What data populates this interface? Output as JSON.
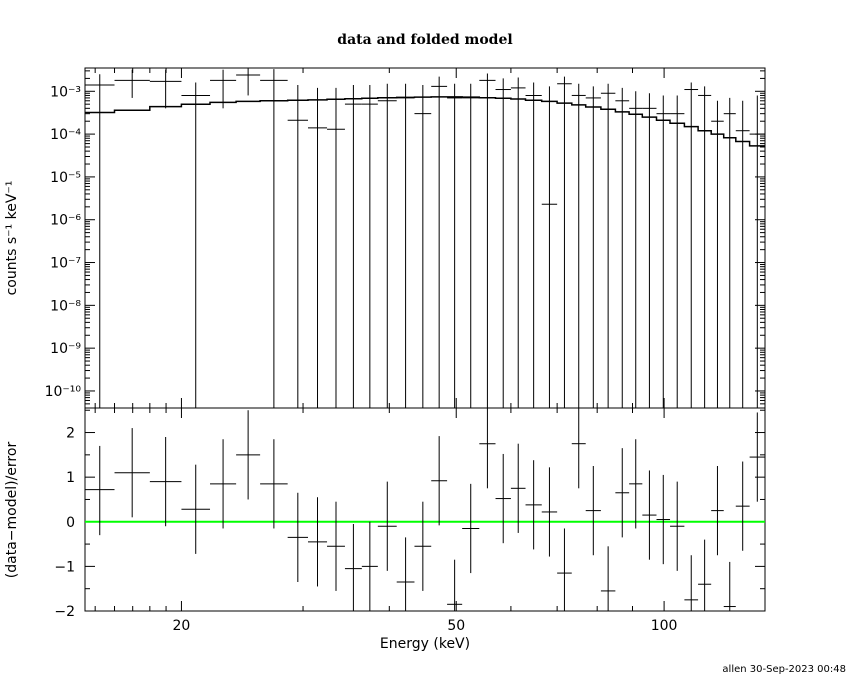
{
  "chart_data": [
    {
      "panel": "upper",
      "type": "scatter",
      "title": "data and folded model",
      "ylabel": "counts s⁻¹ keV⁻¹",
      "yscale": "log",
      "xscale": "log",
      "xlim": [
        14.5,
        140
      ],
      "ylim": [
        4e-11,
        0.0035
      ],
      "ytick_labels": [
        "10⁻³",
        "10⁻⁴",
        "10⁻⁵",
        "10⁻⁶",
        "10⁻⁷",
        "10⁻⁸",
        "10⁻⁹",
        "10⁻¹⁰"
      ],
      "ytick_values": [
        0.001,
        0.0001,
        1e-05,
        1e-06,
        1e-07,
        1e-08,
        1e-09,
        1e-10
      ],
      "data_points": [
        {
          "xlo": 14.5,
          "xhi": 16.0,
          "y": 0.0014,
          "ylo": 3e-11,
          "yhi": 0.0025
        },
        {
          "xlo": 16.0,
          "xhi": 18.0,
          "y": 0.0018,
          "ylo": 0.0007,
          "yhi": 0.0032
        },
        {
          "xlo": 18.0,
          "xhi": 20.0,
          "y": 0.0017,
          "ylo": 0.0004,
          "yhi": 0.0032
        },
        {
          "xlo": 20.0,
          "xhi": 22.0,
          "y": 0.0008,
          "ylo": 3e-11,
          "yhi": 0.0016
        },
        {
          "xlo": 22.0,
          "xhi": 24.0,
          "y": 0.0018,
          "ylo": 0.0004,
          "yhi": 0.0032
        },
        {
          "xlo": 24.0,
          "xhi": 26.0,
          "y": 0.0024,
          "ylo": 0.0008,
          "yhi": 0.0034
        },
        {
          "xlo": 26.0,
          "xhi": 28.5,
          "y": 0.0018,
          "ylo": 3e-11,
          "yhi": 0.0033
        },
        {
          "xlo": 28.5,
          "xhi": 30.5,
          "y": 0.00021,
          "ylo": 3e-11,
          "yhi": 0.0014
        },
        {
          "xlo": 30.5,
          "xhi": 32.5,
          "y": 0.00014,
          "ylo": 3e-11,
          "yhi": 0.0012
        },
        {
          "xlo": 32.5,
          "xhi": 34.5,
          "y": 0.00013,
          "ylo": 3e-11,
          "yhi": 0.0012
        },
        {
          "xlo": 34.5,
          "xhi": 36.5,
          "y": 0.0005,
          "ylo": 3e-11,
          "yhi": 0.0014
        },
        {
          "xlo": 36.5,
          "xhi": 38.5,
          "y": 0.0005,
          "ylo": 3e-11,
          "yhi": 0.0014
        },
        {
          "xlo": 38.5,
          "xhi": 41.0,
          "y": 0.0006,
          "ylo": 3e-11,
          "yhi": 0.0015
        },
        {
          "xlo": 41.0,
          "xhi": 43.5,
          "y": 0.0007,
          "ylo": 3e-11,
          "yhi": 0.0015
        },
        {
          "xlo": 43.5,
          "xhi": 46.0,
          "y": 0.0003,
          "ylo": 3e-11,
          "yhi": 0.0014
        },
        {
          "xlo": 46.0,
          "xhi": 48.5,
          "y": 0.0013,
          "ylo": 3e-11,
          "yhi": 0.0022
        },
        {
          "xlo": 48.5,
          "xhi": 51.0,
          "y": 0.0007,
          "ylo": 3e-11,
          "yhi": 0.0015
        },
        {
          "xlo": 51.0,
          "xhi": 54.0,
          "y": 0.0007,
          "ylo": 3e-11,
          "yhi": 0.0015
        },
        {
          "xlo": 54.0,
          "xhi": 57.0,
          "y": 0.0018,
          "ylo": 3e-11,
          "yhi": 0.0026
        },
        {
          "xlo": 57.0,
          "xhi": 60.0,
          "y": 0.0011,
          "ylo": 3e-11,
          "yhi": 0.002
        },
        {
          "xlo": 60.0,
          "xhi": 63.0,
          "y": 0.0012,
          "ylo": 3e-11,
          "yhi": 0.0021
        },
        {
          "xlo": 63.0,
          "xhi": 66.5,
          "y": 0.0008,
          "ylo": 3e-11,
          "yhi": 0.0016
        },
        {
          "xlo": 66.5,
          "xhi": 70.0,
          "y": 2.3e-06,
          "ylo": 3e-11,
          "yhi": 0.0013
        },
        {
          "xlo": 70.0,
          "xhi": 73.5,
          "y": 0.0015,
          "ylo": 3e-11,
          "yhi": 0.0022
        },
        {
          "xlo": 73.5,
          "xhi": 77.0,
          "y": 0.0008,
          "ylo": 3e-11,
          "yhi": 0.0015
        },
        {
          "xlo": 77.0,
          "xhi": 81.0,
          "y": 0.0007,
          "ylo": 3e-11,
          "yhi": 0.0013
        },
        {
          "xlo": 81.0,
          "xhi": 85.0,
          "y": 0.0009,
          "ylo": 3e-11,
          "yhi": 0.0015
        },
        {
          "xlo": 85.0,
          "xhi": 89.0,
          "y": 0.0006,
          "ylo": 3e-11,
          "yhi": 0.0012
        },
        {
          "xlo": 89.0,
          "xhi": 93.0,
          "y": 0.0004,
          "ylo": 3e-11,
          "yhi": 0.001
        },
        {
          "xlo": 93.0,
          "xhi": 97.5,
          "y": 0.0004,
          "ylo": 3e-11,
          "yhi": 0.0009
        },
        {
          "xlo": 97.5,
          "xhi": 102.0,
          "y": 0.0003,
          "ylo": 3e-11,
          "yhi": 0.0008
        },
        {
          "xlo": 102.0,
          "xhi": 107.0,
          "y": 0.0003,
          "ylo": 3e-11,
          "yhi": 0.0008
        },
        {
          "xlo": 107.0,
          "xhi": 112.0,
          "y": 0.0011,
          "ylo": 3e-11,
          "yhi": 0.0016
        },
        {
          "xlo": 112.0,
          "xhi": 117.0,
          "y": 0.0008,
          "ylo": 3e-11,
          "yhi": 0.0013
        },
        {
          "xlo": 117.0,
          "xhi": 122.0,
          "y": 0.0002,
          "ylo": 3e-11,
          "yhi": 0.0006
        },
        {
          "xlo": 122.0,
          "xhi": 127.0,
          "y": 0.0003,
          "ylo": 3e-11,
          "yhi": 0.0007
        },
        {
          "xlo": 127.0,
          "xhi": 133.0,
          "y": 0.00012,
          "ylo": 3e-11,
          "yhi": 0.0006
        },
        {
          "xlo": 133.0,
          "xhi": 140.0,
          "y": 0.0001,
          "ylo": 3e-11,
          "yhi": 0.0008
        }
      ],
      "model": {
        "x": [
          14.5,
          16,
          18,
          20,
          22,
          24,
          26,
          28.5,
          30.5,
          32.5,
          34.5,
          36.5,
          38.5,
          41,
          43.5,
          46,
          48.5,
          51,
          54,
          57,
          60,
          63,
          66.5,
          70,
          73.5,
          77,
          81,
          85,
          89,
          93,
          97.5,
          102,
          107,
          112,
          117,
          122,
          127,
          133,
          140
        ],
        "y": [
          0.00032,
          0.00036,
          0.00044,
          0.0005,
          0.00055,
          0.00058,
          0.0006,
          0.00062,
          0.00063,
          0.00065,
          0.00067,
          0.00069,
          0.00071,
          0.00072,
          0.00073,
          0.00074,
          0.00074,
          0.00073,
          0.00071,
          0.00069,
          0.00066,
          0.00062,
          0.00058,
          0.00053,
          0.00048,
          0.00043,
          0.00038,
          0.00033,
          0.00029,
          0.00025,
          0.00021,
          0.00018,
          0.00015,
          0.00012,
          0.0001,
          8.2e-05,
          6.7e-05,
          5.3e-05,
          4.2e-05
        ]
      }
    },
    {
      "panel": "lower",
      "type": "scatter",
      "xlabel": "Energy (keV)",
      "ylabel": "(data−model)/error",
      "xscale": "log",
      "xlim": [
        14.5,
        140
      ],
      "ylim": [
        -2,
        2.55
      ],
      "ytick_labels": [
        "2",
        "1",
        "0",
        "−1",
        "−2"
      ],
      "ytick_values": [
        2,
        1,
        0,
        -1,
        -2
      ],
      "xtick_labels": [
        "20",
        "50",
        "100"
      ],
      "xtick_values": [
        20,
        50,
        100
      ],
      "zero_line_color": "#00ff00",
      "data_points": [
        {
          "xlo": 14.5,
          "xhi": 16.0,
          "y": 0.72,
          "ylo": -0.3,
          "yhi": 1.7
        },
        {
          "xlo": 16.0,
          "xhi": 18.0,
          "y": 1.1,
          "ylo": 0.1,
          "yhi": 2.1
        },
        {
          "xlo": 18.0,
          "xhi": 20.0,
          "y": 0.9,
          "ylo": -0.1,
          "yhi": 1.9
        },
        {
          "xlo": 20.0,
          "xhi": 22.0,
          "y": 0.28,
          "ylo": -0.72,
          "yhi": 1.28
        },
        {
          "xlo": 22.0,
          "xhi": 24.0,
          "y": 0.85,
          "ylo": -0.15,
          "yhi": 1.85
        },
        {
          "xlo": 24.0,
          "xhi": 26.0,
          "y": 1.5,
          "ylo": 0.5,
          "yhi": 2.5
        },
        {
          "xlo": 26.0,
          "xhi": 28.5,
          "y": 0.85,
          "ylo": -0.15,
          "yhi": 1.85
        },
        {
          "xlo": 28.5,
          "xhi": 30.5,
          "y": -0.35,
          "ylo": -1.35,
          "yhi": 0.65
        },
        {
          "xlo": 30.5,
          "xhi": 32.5,
          "y": -0.45,
          "ylo": -1.45,
          "yhi": 0.55
        },
        {
          "xlo": 32.5,
          "xhi": 34.5,
          "y": -0.55,
          "ylo": -1.55,
          "yhi": 0.45
        },
        {
          "xlo": 34.5,
          "xhi": 36.5,
          "y": -1.05,
          "ylo": -2.05,
          "yhi": -0.05
        },
        {
          "xlo": 36.5,
          "xhi": 38.5,
          "y": -1.0,
          "ylo": -2.0,
          "yhi": 0.0
        },
        {
          "xlo": 38.5,
          "xhi": 41.0,
          "y": -0.1,
          "ylo": -1.1,
          "yhi": 0.9
        },
        {
          "xlo": 41.0,
          "xhi": 43.5,
          "y": -1.35,
          "ylo": -2.35,
          "yhi": -0.35
        },
        {
          "xlo": 43.5,
          "xhi": 46.0,
          "y": -0.55,
          "ylo": -1.55,
          "yhi": 0.45
        },
        {
          "xlo": 46.0,
          "xhi": 48.5,
          "y": 0.92,
          "ylo": -0.08,
          "yhi": 1.92
        },
        {
          "xlo": 48.5,
          "xhi": 51.0,
          "y": -1.85,
          "ylo": -2.85,
          "yhi": -0.85
        },
        {
          "xlo": 51.0,
          "xhi": 54.0,
          "y": -0.15,
          "ylo": -1.15,
          "yhi": 0.85
        },
        {
          "xlo": 54.0,
          "xhi": 57.0,
          "y": 1.75,
          "ylo": 0.75,
          "yhi": 2.75
        },
        {
          "xlo": 57.0,
          "xhi": 60.0,
          "y": 0.52,
          "ylo": -0.48,
          "yhi": 1.52
        },
        {
          "xlo": 60.0,
          "xhi": 63.0,
          "y": 0.75,
          "ylo": -0.25,
          "yhi": 1.75
        },
        {
          "xlo": 63.0,
          "xhi": 66.5,
          "y": 0.38,
          "ylo": -0.62,
          "yhi": 1.38
        },
        {
          "xlo": 66.5,
          "xhi": 70.0,
          "y": 0.22,
          "ylo": -0.78,
          "yhi": 1.22
        },
        {
          "xlo": 70.0,
          "xhi": 73.5,
          "y": -1.15,
          "ylo": -2.15,
          "yhi": -0.15
        },
        {
          "xlo": 73.5,
          "xhi": 77.0,
          "y": 1.75,
          "ylo": 0.75,
          "yhi": 2.75
        },
        {
          "xlo": 77.0,
          "xhi": 81.0,
          "y": 0.25,
          "ylo": -0.75,
          "yhi": 1.25
        },
        {
          "xlo": 81.0,
          "xhi": 85.0,
          "y": -1.55,
          "ylo": -2.55,
          "yhi": -0.55
        },
        {
          "xlo": 85.0,
          "xhi": 89.0,
          "y": 0.65,
          "ylo": -0.35,
          "yhi": 1.65
        },
        {
          "xlo": 89.0,
          "xhi": 93.0,
          "y": 0.85,
          "ylo": -0.15,
          "yhi": 1.85
        },
        {
          "xlo": 93.0,
          "xhi": 97.5,
          "y": 0.15,
          "ylo": -0.85,
          "yhi": 1.15
        },
        {
          "xlo": 97.5,
          "xhi": 102.0,
          "y": 0.05,
          "ylo": -0.95,
          "yhi": 1.05
        },
        {
          "xlo": 102.0,
          "xhi": 107.0,
          "y": -0.1,
          "ylo": -1.1,
          "yhi": 0.9
        },
        {
          "xlo": 107.0,
          "xhi": 112.0,
          "y": -1.75,
          "ylo": -2.75,
          "yhi": -0.75
        },
        {
          "xlo": 112.0,
          "xhi": 117.0,
          "y": -1.4,
          "ylo": -2.4,
          "yhi": -0.4
        },
        {
          "xlo": 117.0,
          "xhi": 122.0,
          "y": 0.25,
          "ylo": -0.75,
          "yhi": 1.25
        },
        {
          "xlo": 122.0,
          "xhi": 127.0,
          "y": -1.9,
          "ylo": -2.9,
          "yhi": -0.9
        },
        {
          "xlo": 127.0,
          "xhi": 133.0,
          "y": 0.35,
          "ylo": -0.65,
          "yhi": 1.35
        },
        {
          "xlo": 133.0,
          "xhi": 140.0,
          "y": 1.45,
          "ylo": 0.45,
          "yhi": 2.45
        }
      ]
    }
  ],
  "footer": "allen 30-Sep-2023 00:48"
}
